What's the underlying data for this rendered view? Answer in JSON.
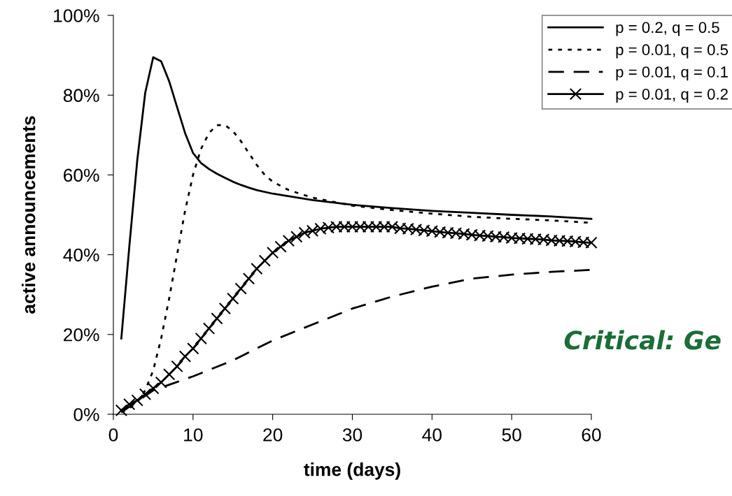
{
  "chart_data": {
    "type": "line",
    "xlabel": "time (days)",
    "ylabel": "active announcements",
    "xlim": [
      0,
      60
    ],
    "xticks": [
      0,
      10,
      20,
      30,
      40,
      50,
      60
    ],
    "ylim": [
      0,
      100
    ],
    "yticks": [
      {
        "value": 0,
        "label": "0%"
      },
      {
        "value": 20,
        "label": "20%"
      },
      {
        "value": 40,
        "label": "40%"
      },
      {
        "value": 60,
        "label": "60%"
      },
      {
        "value": 80,
        "label": "80%"
      },
      {
        "value": 100,
        "label": "100%"
      }
    ],
    "grid": false,
    "legend": "top right",
    "annotations": [
      "Critical: Ge"
    ],
    "series": [
      {
        "name": "p = 0.2, q = 0.5",
        "color": "#000000",
        "line_style": "solid",
        "marker": "none",
        "x": [
          1,
          2,
          3,
          4,
          5,
          6,
          7,
          8,
          9,
          10,
          11,
          12,
          13,
          14,
          15,
          16,
          17,
          18,
          20,
          25,
          30,
          35,
          40,
          45,
          50,
          55,
          60
        ],
        "values": [
          19,
          42,
          63.7,
          80.6,
          89.5,
          88.5,
          83.5,
          77,
          70.5,
          65.5,
          63,
          61.5,
          60.3,
          59.3,
          58.3,
          57.5,
          56.8,
          56.2,
          55.3,
          53.7,
          52.5,
          51.7,
          51,
          50.5,
          50,
          49.6,
          49
        ]
      },
      {
        "name": "p = 0.01, q = 0.5",
        "color": "#000000",
        "line_style": "dotted",
        "marker": "none",
        "x": [
          1,
          2,
          3,
          4,
          5,
          6,
          7,
          8,
          9,
          10,
          11,
          12,
          13,
          14,
          15,
          16,
          17,
          18,
          19,
          20,
          22,
          25,
          30,
          35,
          40,
          45,
          50,
          55,
          60
        ],
        "values": [
          0.5,
          1.5,
          3,
          6,
          11,
          19,
          29,
          40,
          51,
          60,
          66.5,
          70.5,
          72.5,
          72.5,
          71,
          68.5,
          65.5,
          62.5,
          60,
          58.3,
          56.2,
          54.3,
          52.3,
          51.2,
          50.3,
          49.5,
          49,
          48.6,
          48
        ]
      },
      {
        "name": "p = 0.01, q = 0.1",
        "color": "#000000",
        "line_style": "dashed",
        "marker": "none",
        "x": [
          1,
          5,
          10,
          15,
          20,
          25,
          30,
          35,
          40,
          45,
          50,
          55,
          60
        ],
        "values": [
          0.5,
          6,
          9.5,
          13.5,
          18.5,
          22.5,
          26.5,
          29.5,
          32,
          34,
          35,
          35.7,
          36.2
        ]
      },
      {
        "name": "p = 0.01, q = 0.2",
        "color": "#000000",
        "line_style": "solid",
        "marker": "cross",
        "x": [
          1,
          2,
          3,
          4,
          5,
          6,
          7,
          8,
          9,
          10,
          11,
          12,
          13,
          14,
          15,
          16,
          17,
          18,
          19,
          20,
          21,
          22,
          23,
          24,
          25,
          26,
          27,
          28,
          29,
          30,
          31,
          32,
          33,
          34,
          35,
          36,
          37,
          38,
          39,
          40,
          41,
          42,
          43,
          44,
          45,
          46,
          47,
          48,
          49,
          50,
          51,
          52,
          53,
          54,
          55,
          56,
          57,
          58,
          59,
          60
        ],
        "values": [
          1,
          2.5,
          3.5,
          5,
          6.5,
          8,
          10,
          12,
          14.5,
          16.5,
          19,
          21.5,
          24,
          26.5,
          29,
          31.5,
          34,
          36.5,
          38.5,
          40.5,
          42,
          43.5,
          44.5,
          45.5,
          46,
          46.5,
          46.8,
          47,
          47,
          47,
          47,
          47,
          47,
          47,
          47,
          46.6,
          46.5,
          46.3,
          46.1,
          45.9,
          45.7,
          45.5,
          45.4,
          45.2,
          45,
          44.8,
          44.7,
          44.5,
          44.4,
          44.2,
          44.1,
          44,
          43.9,
          43.8,
          43.6,
          43.5,
          43.4,
          43.3,
          43.1,
          43
        ]
      }
    ]
  }
}
